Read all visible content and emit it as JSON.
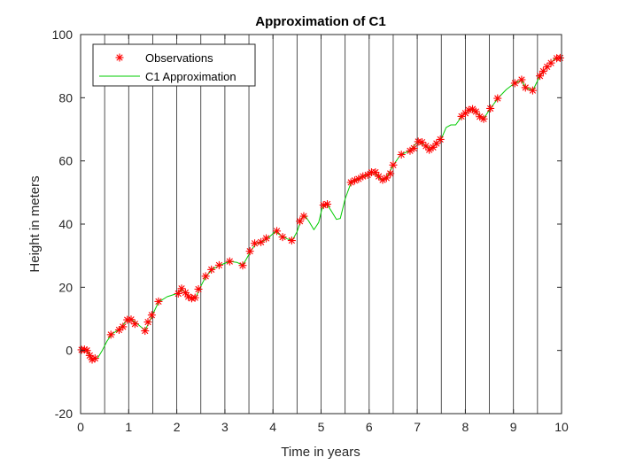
{
  "chart_data": {
    "type": "line",
    "title": "Approximation of C1",
    "xlabel": "Time in years",
    "ylabel": "Height in meters",
    "xlim": [
      0,
      10
    ],
    "ylim": [
      -20,
      100
    ],
    "xticks": [
      0,
      1,
      2,
      3,
      4,
      5,
      6,
      7,
      8,
      9,
      10
    ],
    "yticks": [
      -20,
      0,
      20,
      40,
      60,
      80,
      100
    ],
    "xtick_labels": [
      "0",
      "1",
      "2",
      "3",
      "4",
      "5",
      "6",
      "7",
      "8",
      "9",
      "10"
    ],
    "ytick_labels": [
      "-20",
      "0",
      "20",
      "40",
      "60",
      "80",
      "100"
    ],
    "grid": false,
    "breakpoints": [
      0.5,
      1,
      1.5,
      2,
      2.5,
      3,
      3.5,
      4,
      4.5,
      5,
      5.5,
      6,
      6.5,
      7,
      7.5,
      8,
      8.5,
      9,
      9.5
    ],
    "legend": {
      "placement": "top-left"
    },
    "series": [
      {
        "name": "Observations",
        "style": "marker",
        "color": "#ff0000",
        "points": [
          [
            0.02,
            0.2
          ],
          [
            0.08,
            0.3
          ],
          [
            0.13,
            0.0
          ],
          [
            0.19,
            -1.6
          ],
          [
            0.24,
            -2.9
          ],
          [
            0.3,
            -2.5
          ],
          [
            0.63,
            5.0
          ],
          [
            0.8,
            6.5
          ],
          [
            0.88,
            7.5
          ],
          [
            0.97,
            9.7
          ],
          [
            1.05,
            9.8
          ],
          [
            1.13,
            8.4
          ],
          [
            1.34,
            6.2
          ],
          [
            1.4,
            9.0
          ],
          [
            1.48,
            11.2
          ],
          [
            1.62,
            15.5
          ],
          [
            2.03,
            18.0
          ],
          [
            2.1,
            19.6
          ],
          [
            2.18,
            18.3
          ],
          [
            2.24,
            17.0
          ],
          [
            2.31,
            16.5
          ],
          [
            2.38,
            16.7
          ],
          [
            2.45,
            19.4
          ],
          [
            2.6,
            23.5
          ],
          [
            2.72,
            25.6
          ],
          [
            2.88,
            27.0
          ],
          [
            3.1,
            28.2
          ],
          [
            3.37,
            26.9
          ],
          [
            3.52,
            31.4
          ],
          [
            3.62,
            33.9
          ],
          [
            3.75,
            34.3
          ],
          [
            3.86,
            35.5
          ],
          [
            4.08,
            37.8
          ],
          [
            4.2,
            35.9
          ],
          [
            4.39,
            34.8
          ],
          [
            4.56,
            40.9
          ],
          [
            4.64,
            42.5
          ],
          [
            5.05,
            46.0
          ],
          [
            5.13,
            46.3
          ],
          [
            5.62,
            53.2
          ],
          [
            5.7,
            53.8
          ],
          [
            5.78,
            54.3
          ],
          [
            5.87,
            55.1
          ],
          [
            5.97,
            55.6
          ],
          [
            6.05,
            56.4
          ],
          [
            6.13,
            56.4
          ],
          [
            6.2,
            55.1
          ],
          [
            6.28,
            54.0
          ],
          [
            6.36,
            54.6
          ],
          [
            6.44,
            56.0
          ],
          [
            6.5,
            58.7
          ],
          [
            6.67,
            62.0
          ],
          [
            6.85,
            63.2
          ],
          [
            6.93,
            64.0
          ],
          [
            7.02,
            66.1
          ],
          [
            7.1,
            65.9
          ],
          [
            7.18,
            64.7
          ],
          [
            7.25,
            63.5
          ],
          [
            7.33,
            64.3
          ],
          [
            7.4,
            65.5
          ],
          [
            7.48,
            66.8
          ],
          [
            7.92,
            74.1
          ],
          [
            8.0,
            75.1
          ],
          [
            8.07,
            76.1
          ],
          [
            8.15,
            76.4
          ],
          [
            8.22,
            75.6
          ],
          [
            8.3,
            74.0
          ],
          [
            8.38,
            73.3
          ],
          [
            8.52,
            76.6
          ],
          [
            8.67,
            79.8
          ],
          [
            9.03,
            84.6
          ],
          [
            9.17,
            85.7
          ],
          [
            9.25,
            83.2
          ],
          [
            9.4,
            82.3
          ],
          [
            9.55,
            86.9
          ],
          [
            9.62,
            88.4
          ],
          [
            9.7,
            89.8
          ],
          [
            9.78,
            91.0
          ],
          [
            9.9,
            92.5
          ],
          [
            9.97,
            92.6
          ]
        ]
      },
      {
        "name": "C1 Approximation",
        "style": "line",
        "color": "#00cc00",
        "points": [
          [
            0.0,
            0.0
          ],
          [
            0.1,
            0.3
          ],
          [
            0.17,
            -0.8
          ],
          [
            0.24,
            -2.8
          ],
          [
            0.3,
            -2.8
          ],
          [
            0.36,
            -2.3
          ],
          [
            0.45,
            0.0
          ],
          [
            0.55,
            3.0
          ],
          [
            0.65,
            5.2
          ],
          [
            0.8,
            6.6
          ],
          [
            0.95,
            9.3
          ],
          [
            1.05,
            9.8
          ],
          [
            1.15,
            8.8
          ],
          [
            1.25,
            7.5
          ],
          [
            1.34,
            6.4
          ],
          [
            1.42,
            8.8
          ],
          [
            1.5,
            11.4
          ],
          [
            1.62,
            15.3
          ],
          [
            1.8,
            17.0
          ],
          [
            2.0,
            18.0
          ],
          [
            2.1,
            19.3
          ],
          [
            2.2,
            18.0
          ],
          [
            2.3,
            16.6
          ],
          [
            2.4,
            16.8
          ],
          [
            2.46,
            19.2
          ],
          [
            2.6,
            23.3
          ],
          [
            2.75,
            25.8
          ],
          [
            2.9,
            27.0
          ],
          [
            3.1,
            28.2
          ],
          [
            3.25,
            27.9
          ],
          [
            3.37,
            27.0
          ],
          [
            3.45,
            29.0
          ],
          [
            3.55,
            31.8
          ],
          [
            3.65,
            33.8
          ],
          [
            3.8,
            34.6
          ],
          [
            3.9,
            35.6
          ],
          [
            4.05,
            37.7
          ],
          [
            4.15,
            36.5
          ],
          [
            4.3,
            35.3
          ],
          [
            4.4,
            34.8
          ],
          [
            4.5,
            37.6
          ],
          [
            4.6,
            42.0
          ],
          [
            4.66,
            42.8
          ],
          [
            4.75,
            40.8
          ],
          [
            4.85,
            38.2
          ],
          [
            4.95,
            40.5
          ],
          [
            5.02,
            45.0
          ],
          [
            5.12,
            46.3
          ],
          [
            5.22,
            44.0
          ],
          [
            5.32,
            41.5
          ],
          [
            5.4,
            41.8
          ],
          [
            5.5,
            48.0
          ],
          [
            5.62,
            53.0
          ],
          [
            5.75,
            54.2
          ],
          [
            5.95,
            55.6
          ],
          [
            6.1,
            56.4
          ],
          [
            6.25,
            54.0
          ],
          [
            6.35,
            54.5
          ],
          [
            6.5,
            58.6
          ],
          [
            6.65,
            61.9
          ],
          [
            6.85,
            63.3
          ],
          [
            7.0,
            66.0
          ],
          [
            7.15,
            65.1
          ],
          [
            7.28,
            63.6
          ],
          [
            7.4,
            65.6
          ],
          [
            7.5,
            67.0
          ],
          [
            7.6,
            70.6
          ],
          [
            7.7,
            71.4
          ],
          [
            7.8,
            71.4
          ],
          [
            7.92,
            74.0
          ],
          [
            8.1,
            76.3
          ],
          [
            8.25,
            75.1
          ],
          [
            8.38,
            73.3
          ],
          [
            8.52,
            76.6
          ],
          [
            8.7,
            80.2
          ],
          [
            8.85,
            82.6
          ],
          [
            9.03,
            84.7
          ],
          [
            9.17,
            85.5
          ],
          [
            9.25,
            83.3
          ],
          [
            9.4,
            82.2
          ],
          [
            9.55,
            86.9
          ],
          [
            9.7,
            89.8
          ],
          [
            9.85,
            92.2
          ],
          [
            10.0,
            92.8
          ]
        ]
      }
    ]
  }
}
